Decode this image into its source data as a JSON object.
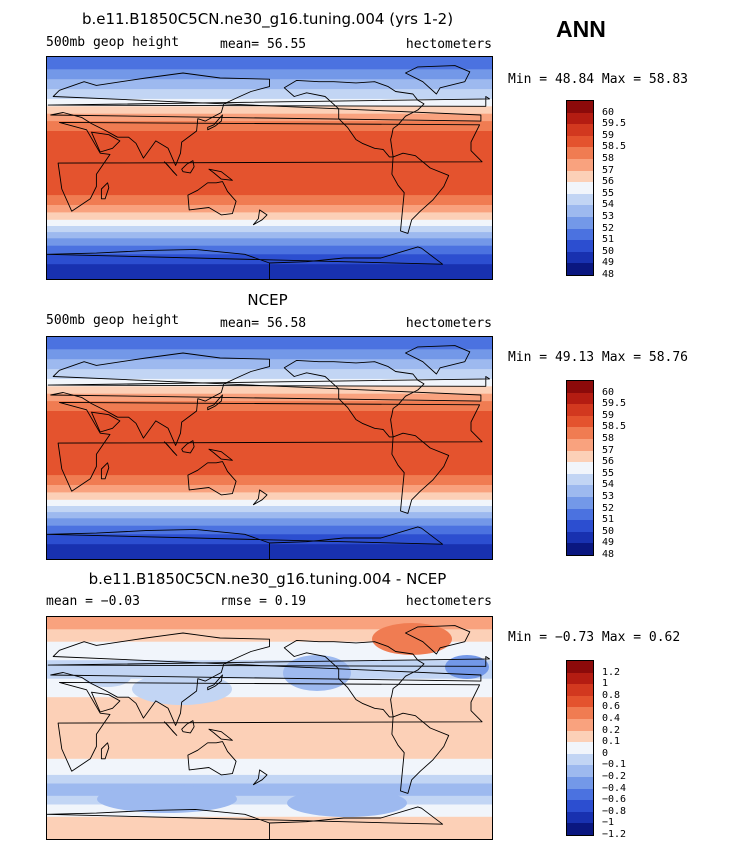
{
  "season": "ANN",
  "panels": [
    {
      "title": "b.e11.B1850C5CN.ne30_g16.tuning.004 (yrs 1-2)",
      "left_label": "500mb geop height",
      "center_label": "mean=  56.55",
      "right_label": "hectometers",
      "minmax": "Min =  48.84 Max =  58.83",
      "field": "abs",
      "colorbar_labels": [
        "60",
        "59.5",
        "59",
        "58.5",
        "58",
        "57",
        "56",
        "55",
        "54",
        "53",
        "52",
        "51",
        "50",
        "49",
        "48"
      ]
    },
    {
      "title": "NCEP",
      "left_label": "500mb geop height",
      "center_label": "mean=  56.58",
      "right_label": "hectometers",
      "minmax": "Min =  49.13 Max =  58.76",
      "field": "abs",
      "colorbar_labels": [
        "60",
        "59.5",
        "59",
        "58.5",
        "58",
        "57",
        "56",
        "55",
        "54",
        "53",
        "52",
        "51",
        "50",
        "49",
        "48"
      ]
    },
    {
      "title": "b.e11.B1850C5CN.ne30_g16.tuning.004 - NCEP",
      "left_label": "mean =  −0.03",
      "center_label": "rmse =   0.19",
      "right_label": "hectometers",
      "minmax": "Min =  −0.73 Max =   0.62",
      "field": "diff",
      "colorbar_labels": [
        "1.2",
        "1",
        "0.8",
        "0.6",
        "0.4",
        "0.2",
        "0.1",
        "0",
        "−0.1",
        "−0.2",
        "−0.4",
        "−0.6",
        "−0.8",
        "−1",
        "−1.2"
      ]
    }
  ],
  "colors": {
    "scale": [
      "#8c0a0a",
      "#b41c12",
      "#d2381f",
      "#e4532e",
      "#f07c52",
      "#f9a27e",
      "#fcd0b7",
      "#f1f5fb",
      "#c2d5f4",
      "#9db9ef",
      "#7398e8",
      "#4b72e0",
      "#2c4ed0",
      "#1831b0",
      "#0a1780"
    ]
  }
}
